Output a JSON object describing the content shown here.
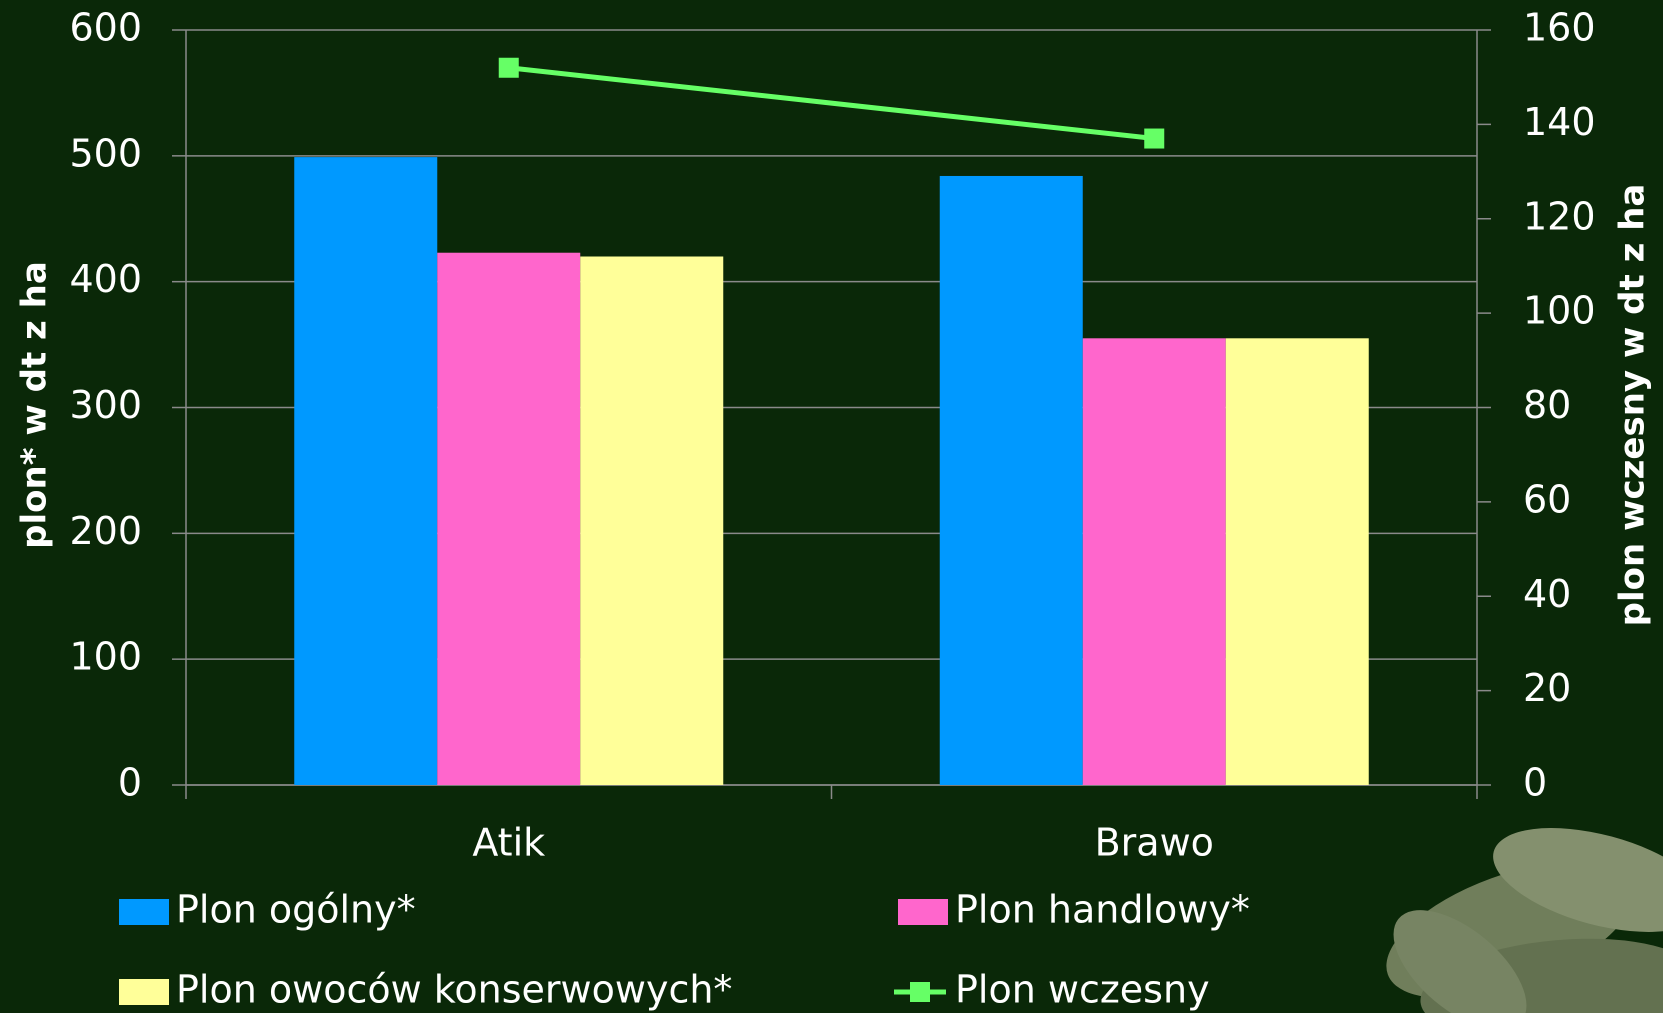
{
  "chart_data": {
    "type": "bar",
    "y_label": "plon*  w dt z ha",
    "y2_label": "plon wczesny w dt z ha",
    "categories": [
      "Atik",
      "Brawo"
    ],
    "series": [
      {
        "name": "Plon ogólny*",
        "color": "#0099ff",
        "values": [
          499,
          484
        ]
      },
      {
        "name": "Plon handlowy*",
        "color": "#ff66cc",
        "values": [
          423,
          355
        ]
      },
      {
        "name": "Plon owoców konserwowych*",
        "color": "#ffff99",
        "values": [
          420,
          355
        ]
      },
      {
        "name": "Plon wczesny",
        "color": "#66ff66",
        "type": "line",
        "axis": "y2",
        "values": [
          152,
          137
        ]
      }
    ],
    "ylim": [
      0,
      600
    ],
    "yticks": [
      0,
      100,
      200,
      300,
      400,
      500,
      600
    ],
    "y2lim": [
      0,
      160
    ],
    "y2ticks": [
      0,
      20,
      40,
      60,
      80,
      100,
      120,
      140,
      160
    ],
    "grid": true
  }
}
